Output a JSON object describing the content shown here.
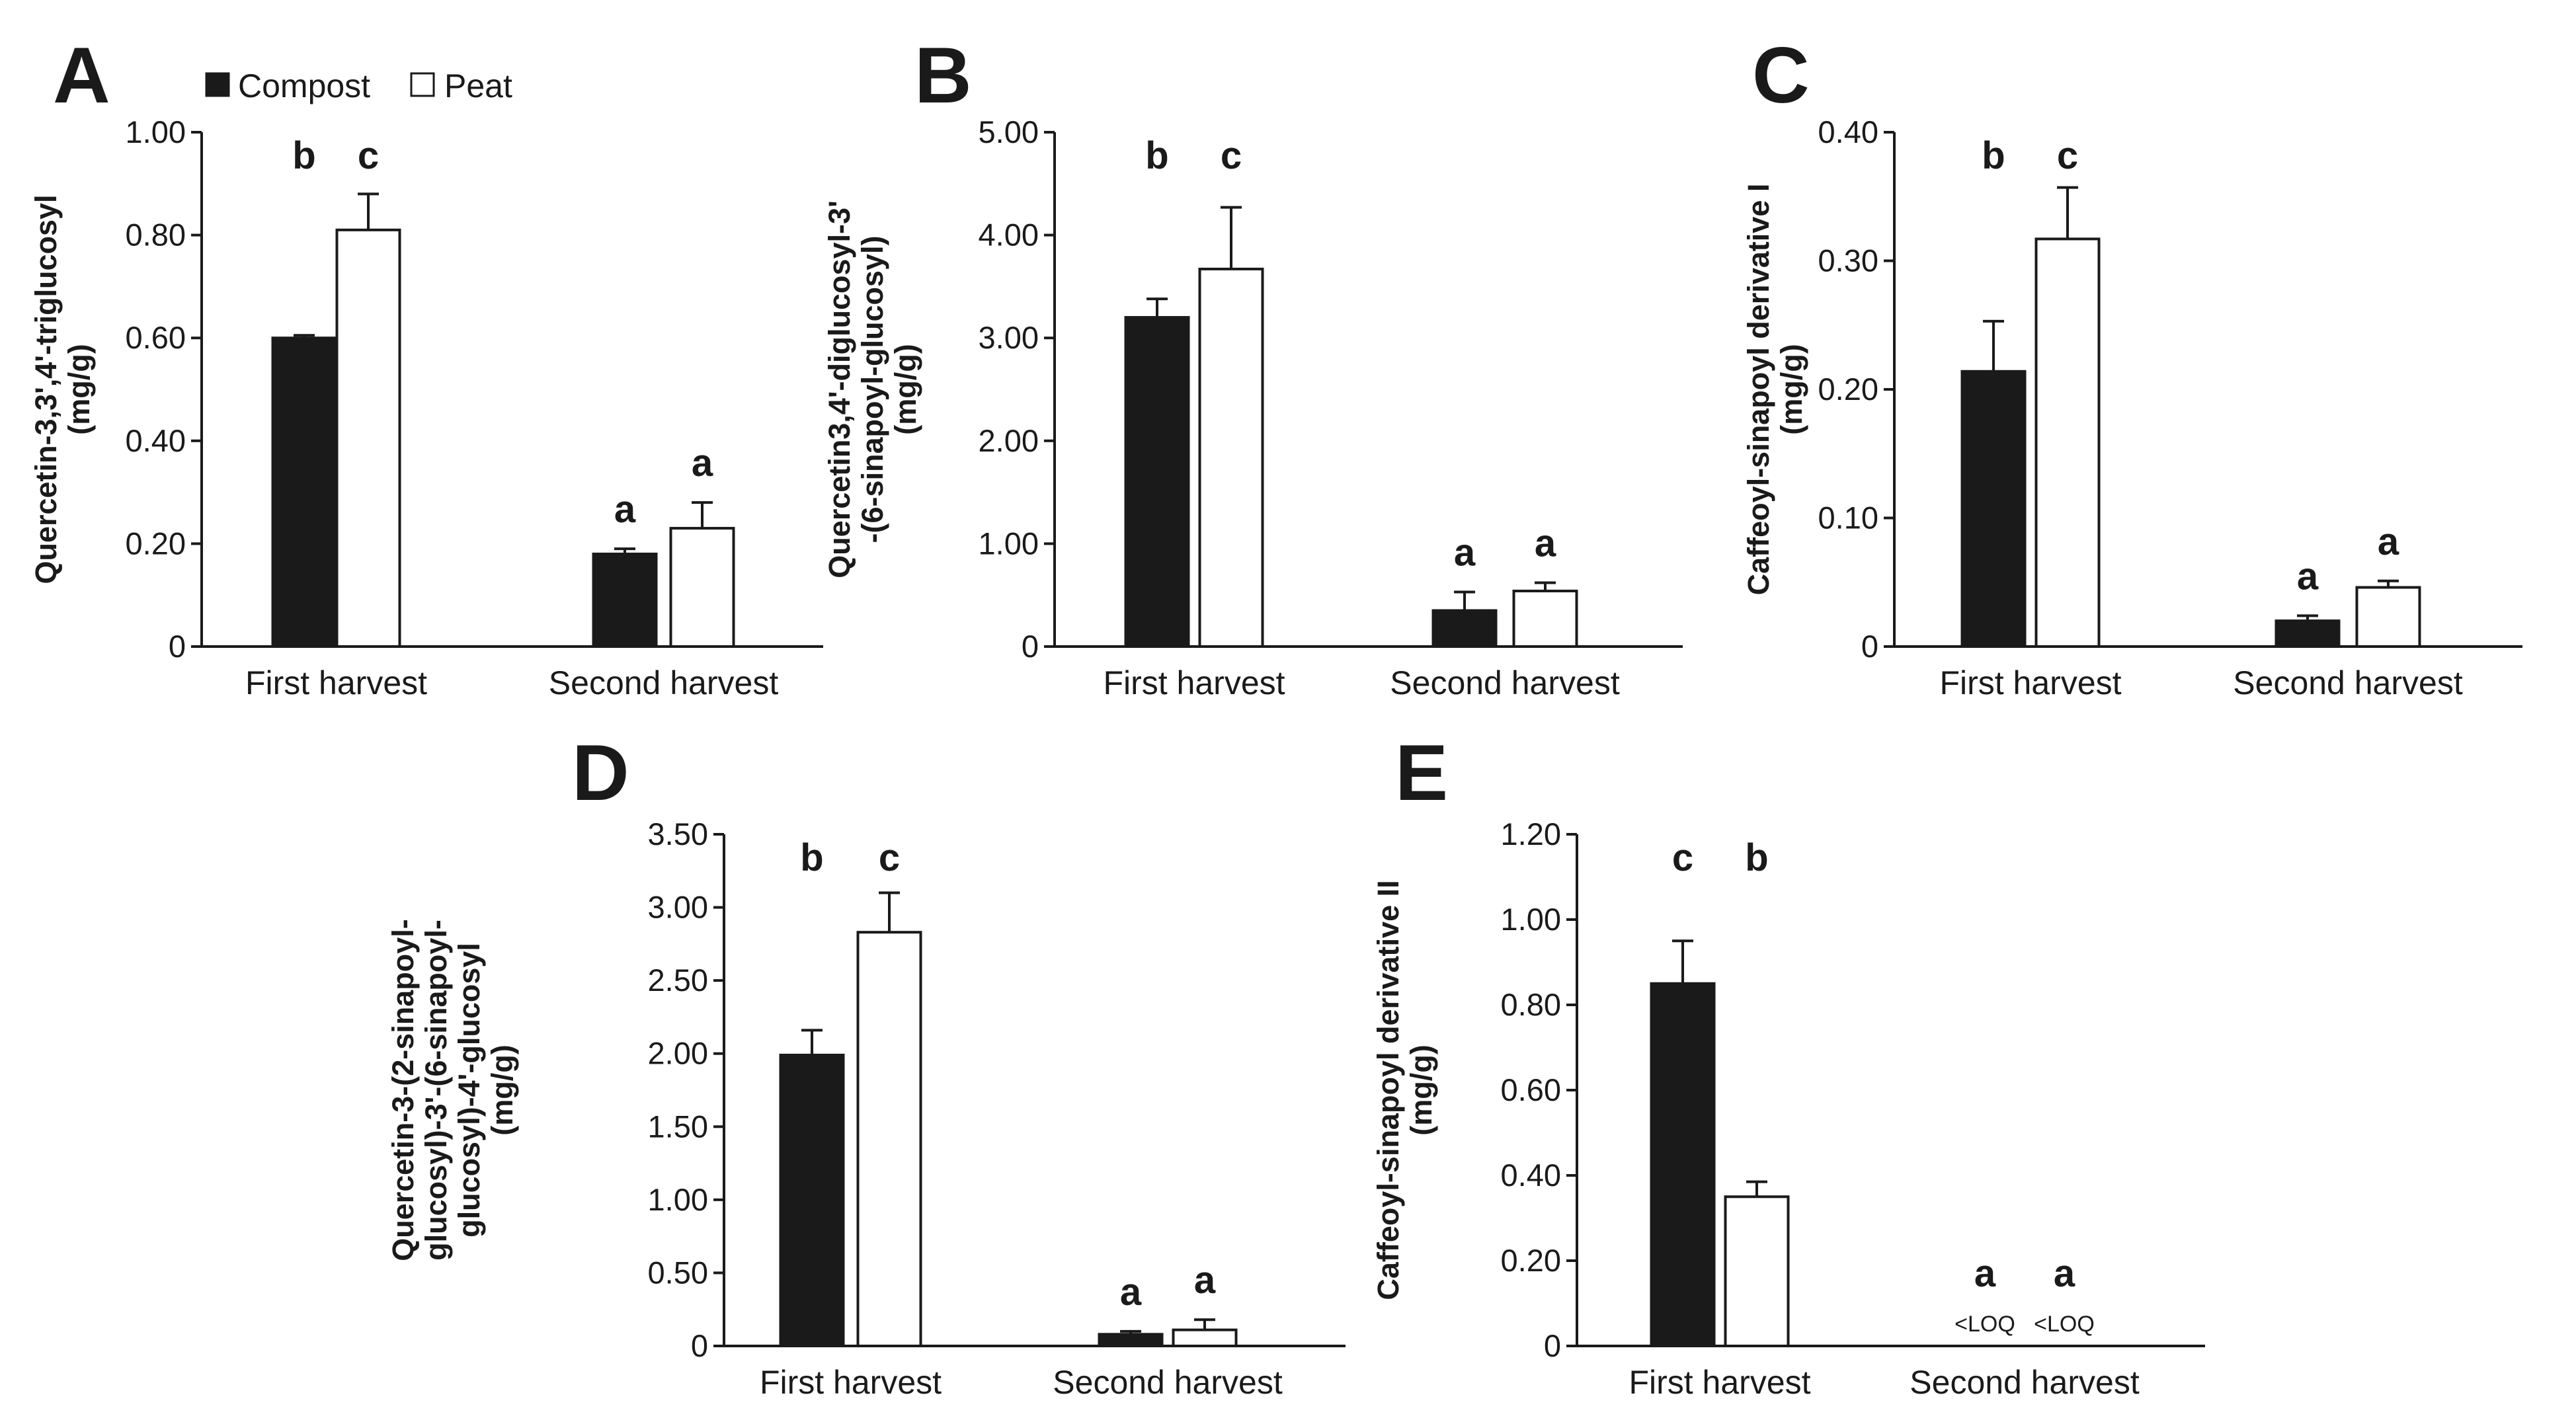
{
  "legend": {
    "compost_label": "Compost",
    "peat_label": "Peat",
    "compost_color": "#1a1a1a",
    "peat_color": "#ffffff"
  },
  "chart_data": [
    {
      "panel": "A",
      "type": "bar",
      "categories": [
        "First harvest",
        "Second harvest"
      ],
      "ylabel_lines": [
        "Quercetin-3,3',4'-triglucosyl",
        "(mg/g)"
      ],
      "ylim": [
        0,
        1.0
      ],
      "yticks": [
        0,
        0.2,
        0.4,
        0.6,
        0.8,
        1.0
      ],
      "ytick_labels": [
        "0",
        "0.20",
        "0.40",
        "0.60",
        "0.80",
        "1.00"
      ],
      "series": [
        {
          "name": "Compost",
          "values": [
            0.6,
            0.18
          ],
          "errors": [
            0.005,
            0.01
          ],
          "letters": [
            "b",
            "a"
          ],
          "notes": [
            "",
            ""
          ]
        },
        {
          "name": "Peat",
          "values": [
            0.81,
            0.23
          ],
          "errors": [
            0.07,
            0.05
          ],
          "letters": [
            "c",
            "a"
          ],
          "notes": [
            "",
            ""
          ]
        }
      ]
    },
    {
      "panel": "B",
      "type": "bar",
      "categories": [
        "First harvest",
        "Second harvest"
      ],
      "ylabel_lines": [
        "Quercetin3,4'-diglucosyl-3'",
        "-(6-sinapoyl-glucosyl)",
        "(mg/g)"
      ],
      "ylim": [
        0,
        5.0
      ],
      "yticks": [
        0,
        1,
        2,
        3,
        4,
        5
      ],
      "ytick_labels": [
        "0",
        "1.00",
        "2.00",
        "3.00",
        "4.00",
        "5.00"
      ],
      "series": [
        {
          "name": "Compost",
          "values": [
            3.2,
            0.35
          ],
          "errors": [
            0.18,
            0.18
          ],
          "letters": [
            "b",
            "a"
          ],
          "notes": [
            "",
            ""
          ]
        },
        {
          "name": "Peat",
          "values": [
            3.67,
            0.54
          ],
          "errors": [
            0.6,
            0.08
          ],
          "letters": [
            "c",
            "a"
          ],
          "notes": [
            "",
            ""
          ]
        }
      ]
    },
    {
      "panel": "C",
      "type": "bar",
      "categories": [
        "First harvest",
        "Second harvest"
      ],
      "ylabel_lines": [
        "Caffeoyl-sinapoyl derivative I",
        "(mg/g)"
      ],
      "ylim": [
        0,
        0.4
      ],
      "yticks": [
        0,
        0.1,
        0.2,
        0.3,
        0.4
      ],
      "ytick_labels": [
        "0",
        "0.10",
        "0.20",
        "0.30",
        "0.40"
      ],
      "series": [
        {
          "name": "Compost",
          "values": [
            0.214,
            0.02
          ],
          "errors": [
            0.039,
            0.004
          ],
          "letters": [
            "b",
            "a"
          ],
          "notes": [
            "",
            ""
          ]
        },
        {
          "name": "Peat",
          "values": [
            0.317,
            0.046
          ],
          "errors": [
            0.04,
            0.005
          ],
          "letters": [
            "c",
            "a"
          ],
          "notes": [
            "",
            ""
          ]
        }
      ]
    },
    {
      "panel": "D",
      "type": "bar",
      "categories": [
        "First harvest",
        "Second harvest"
      ],
      "ylabel_lines": [
        "Quercetin-3-(2-sinapoyl-",
        "glucosyl)-3'-(6-sinapoyl-",
        "glucosyl)-4'-glucosyl",
        "(mg/g)"
      ],
      "ylim": [
        0,
        3.5
      ],
      "yticks": [
        0,
        0.5,
        1.0,
        1.5,
        2.0,
        2.5,
        3.0,
        3.5
      ],
      "ytick_labels": [
        "0",
        "0.50",
        "1.00",
        "1.50",
        "2.00",
        "2.50",
        "3.00",
        "3.50"
      ],
      "series": [
        {
          "name": "Compost",
          "values": [
            1.99,
            0.08
          ],
          "errors": [
            0.17,
            0.02
          ],
          "letters": [
            "b",
            "a"
          ],
          "notes": [
            "",
            ""
          ]
        },
        {
          "name": "Peat",
          "values": [
            2.83,
            0.11
          ],
          "errors": [
            0.27,
            0.07
          ],
          "letters": [
            "c",
            "a"
          ],
          "notes": [
            "",
            ""
          ]
        }
      ]
    },
    {
      "panel": "E",
      "type": "bar",
      "categories": [
        "First harvest",
        "Second harvest"
      ],
      "ylabel_lines": [
        "Caffeoyl-sinapoyl derivative II",
        "(mg/g)"
      ],
      "ylim": [
        0,
        1.2
      ],
      "yticks": [
        0,
        0.2,
        0.4,
        0.6,
        0.8,
        1.0,
        1.2
      ],
      "ytick_labels": [
        "0",
        "0.20",
        "0.40",
        "0.60",
        "0.80",
        "1.00",
        "1.20"
      ],
      "series": [
        {
          "name": "Compost",
          "values": [
            0.85,
            null
          ],
          "errors": [
            0.1,
            null
          ],
          "letters": [
            "c",
            "a"
          ],
          "notes": [
            "",
            "<LOQ"
          ]
        },
        {
          "name": "Peat",
          "values": [
            0.35,
            null
          ],
          "errors": [
            0.035,
            null
          ],
          "letters": [
            "b",
            "a"
          ],
          "notes": [
            "",
            "<LOQ"
          ]
        }
      ]
    }
  ]
}
